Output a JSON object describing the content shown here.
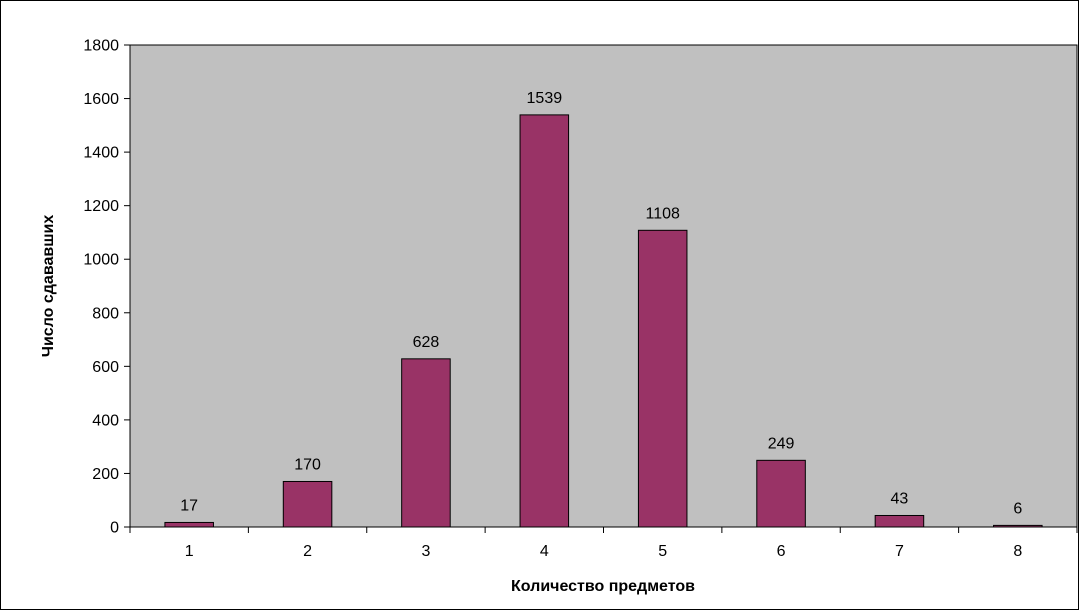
{
  "chart_data": {
    "type": "bar",
    "title": "",
    "xlabel": "Количество предметов",
    "ylabel": "Число сдававших",
    "categories": [
      "1",
      "2",
      "3",
      "4",
      "5",
      "6",
      "7",
      "8"
    ],
    "values": [
      17,
      170,
      628,
      1539,
      1108,
      249,
      43,
      6
    ],
    "ylim": [
      0,
      1800
    ],
    "yticks": [
      0,
      200,
      400,
      600,
      800,
      1000,
      1200,
      1400,
      1600,
      1800
    ],
    "ytick_labels": [
      "0",
      "200",
      "400",
      "600",
      "800",
      "1000",
      "1200",
      "1400",
      "1600",
      "1800"
    ],
    "data_labels": [
      "17",
      "170",
      "628",
      "1539",
      "1108",
      "249",
      "43",
      "6"
    ],
    "grid": false,
    "legend": "none",
    "colors": {
      "bar_fill": "#993366",
      "plot_background": "#c0c0c0",
      "outline": "#000000"
    }
  }
}
